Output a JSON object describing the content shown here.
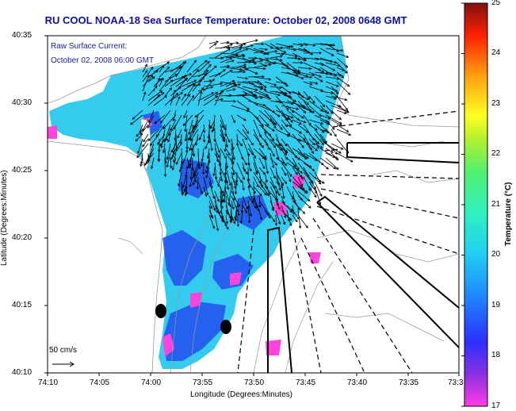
{
  "title": "RU COOL  NOAA-18  Sea Surface Temperature:  October 02, 2008 0648 GMT",
  "current_label_1": "Raw Surface Current:",
  "current_label_2": "October 02, 2008 06:00 GMT",
  "scale_label": "50 cm/s",
  "xlabel": "Longitude (Degrees:Minutes)",
  "ylabel": "Latitude (Degrees:Minutes)",
  "colorbar_label": "Temperature (°C)",
  "xticks": [
    "74:10",
    "74:05",
    "74:00",
    "73:55",
    "73:50",
    "73:45",
    "73:40",
    "73:35",
    "73:3"
  ],
  "yticks": [
    "40:35",
    "40:30",
    "40:25",
    "40:20",
    "40:15",
    "40:10"
  ],
  "cbticks": [
    "25",
    "24",
    "23",
    "22",
    "21",
    "20",
    "19",
    "18",
    "17"
  ],
  "colors": {
    "title": "#1010a0",
    "land": "#ffffff",
    "water_cyan": "#33ccee",
    "water_blue": "#2255ee",
    "magenta": "#ff44dd"
  }
}
